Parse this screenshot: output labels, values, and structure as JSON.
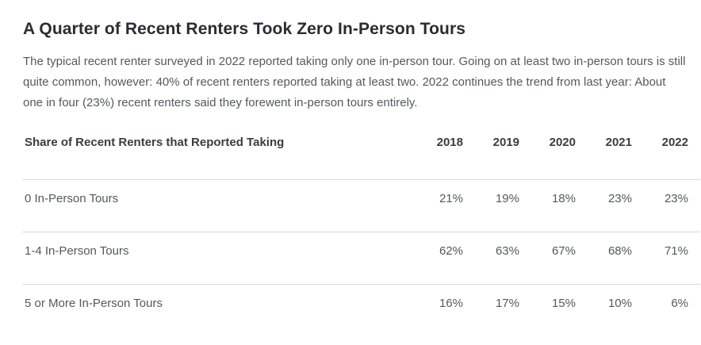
{
  "article": {
    "title": "A Quarter of Recent Renters Took Zero In-Person Tours",
    "intro": "The typical recent renter surveyed in 2022 reported taking only one in-person tour. Going on at least two in-person tours is still quite common, however: 40% of recent renters reported taking at least two. 2022 continues the trend from last year: About one in four (23%) recent renters said they forewent in-person tours entirely."
  },
  "chart_data": {
    "type": "table",
    "title": "Share of Recent Renters that Reported Taking",
    "categories": [
      "2018",
      "2019",
      "2020",
      "2021",
      "2022"
    ],
    "series": [
      {
        "name": "0 In-Person Tours",
        "values": [
          "21%",
          "19%",
          "18%",
          "23%",
          "23%"
        ]
      },
      {
        "name": "1-4 In-Person Tours",
        "values": [
          "62%",
          "63%",
          "67%",
          "68%",
          "71%"
        ]
      },
      {
        "name": "5 or More In-Person Tours",
        "values": [
          "16%",
          "17%",
          "15%",
          "10%",
          "6%"
        ]
      }
    ]
  },
  "table": {
    "label_header": "Share of Recent Renters that Reported Taking",
    "year_headers": [
      "2018",
      "2019",
      "2020",
      "2021",
      "2022"
    ],
    "rows": [
      {
        "label": "0 In-Person Tours",
        "values": [
          "21%",
          "19%",
          "18%",
          "23%",
          "23%"
        ]
      },
      {
        "label": "1-4 In-Person Tours",
        "values": [
          "62%",
          "63%",
          "67%",
          "68%",
          "71%"
        ]
      },
      {
        "label": "5 or More In-Person Tours",
        "values": [
          "16%",
          "17%",
          "15%",
          "10%",
          "6%"
        ]
      }
    ]
  },
  "colors": {
    "background": "#ffffff",
    "title_text": "#2b2b33",
    "body_text": "#55585e",
    "table_header_text": "#393c42",
    "divider": "#d9d9d9"
  }
}
